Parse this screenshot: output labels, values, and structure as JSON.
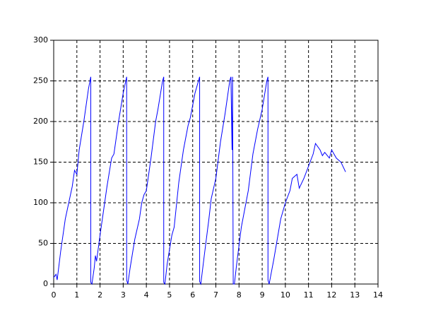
{
  "chart_data": {
    "type": "line",
    "color": "#0000ff",
    "grid": true,
    "x": [
      0,
      0.1,
      0.15,
      0.3,
      0.5,
      0.8,
      0.9,
      1.0,
      1.1,
      1.3,
      1.5,
      1.6,
      1.6,
      1.65,
      1.75,
      1.8,
      1.85,
      2.0,
      2.3,
      2.5,
      2.6,
      2.8,
      3.0,
      3.15,
      3.15,
      3.2,
      3.3,
      3.5,
      3.7,
      3.8,
      3.9,
      4.0,
      4.2,
      4.4,
      4.5,
      4.7,
      4.75,
      4.75,
      4.8,
      4.9,
      5.1,
      5.2,
      5.4,
      5.6,
      5.8,
      5.9,
      6.1,
      6.3,
      6.3,
      6.35,
      6.5,
      6.7,
      6.8,
      7.0,
      7.2,
      7.4,
      7.6,
      7.65,
      7.7,
      7.72,
      7.75,
      7.8,
      7.9,
      8.1,
      8.3,
      8.4,
      8.6,
      8.8,
      9.0,
      9.2,
      9.25,
      9.25,
      9.3,
      9.5,
      9.8,
      10.0,
      10.2,
      10.3,
      10.5,
      10.6,
      10.8,
      11.0,
      11.2,
      11.3,
      11.5,
      11.6,
      11.7,
      11.9,
      12.0,
      12.2,
      12.4,
      12.6
    ],
    "values": [
      8,
      12,
      5,
      40,
      80,
      120,
      140,
      135,
      165,
      200,
      240,
      255,
      2,
      0,
      20,
      35,
      28,
      60,
      120,
      155,
      160,
      200,
      235,
      255,
      5,
      0,
      20,
      55,
      80,
      100,
      110,
      115,
      155,
      200,
      215,
      250,
      255,
      2,
      0,
      25,
      60,
      70,
      125,
      165,
      195,
      205,
      235,
      255,
      3,
      0,
      35,
      80,
      105,
      130,
      175,
      210,
      250,
      255,
      165,
      255,
      0,
      0,
      25,
      70,
      100,
      115,
      160,
      190,
      215,
      250,
      255,
      5,
      0,
      30,
      80,
      100,
      115,
      130,
      135,
      118,
      130,
      145,
      160,
      173,
      165,
      158,
      162,
      155,
      165,
      155,
      150,
      138
    ],
    "xlim": [
      0,
      14
    ],
    "xticks": [
      0,
      1,
      2,
      3,
      4,
      5,
      6,
      7,
      8,
      9,
      10,
      11,
      12,
      13,
      14
    ],
    "ylim": [
      0,
      300
    ],
    "yticks": [
      0,
      50,
      100,
      150,
      200,
      250,
      300
    ]
  }
}
